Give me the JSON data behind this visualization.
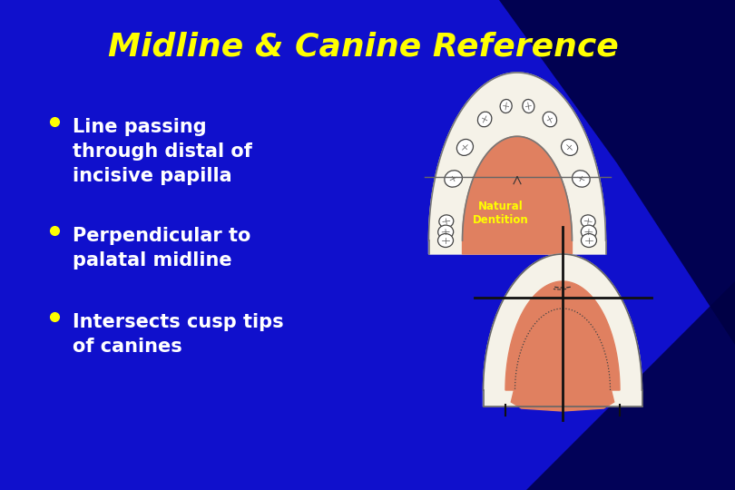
{
  "title": "Midline & Canine Reference",
  "title_color": "#FFFF00",
  "title_fontsize": 26,
  "background_color": "#1010CC",
  "bullet_color": "#FFFFFF",
  "bullet_dot_color": "#FFFF00",
  "bullet_fontsize": 15,
  "bullets": [
    "Line passing\nthrough distal of\nincisive papilla",
    "Perpendicular to\npalatal midline",
    "Intersects cusp tips\nof canines"
  ],
  "natural_dentition_label": "Natural\nDentition",
  "natural_dentition_color": "#FFFF00",
  "arch_fill_color": "#E08060",
  "arch_outer_color": "#F5F2E8",
  "arch_line_color": "#555555",
  "reference_line_color": "#111111",
  "bg_dark": "#000055",
  "bg_mid": "#0000AA"
}
